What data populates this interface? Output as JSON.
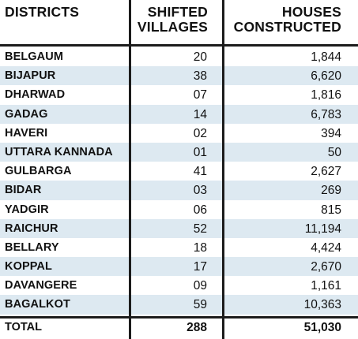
{
  "headers": {
    "districts": "DISTRICTS",
    "shifted_line1": "SHIFTED",
    "shifted_line2": "VILLAGES",
    "houses_line1": "HOUSES",
    "houses_line2": "CONSTRUCTED"
  },
  "rows": [
    {
      "district": "BELGAUM",
      "villages": "20",
      "houses": "1,844"
    },
    {
      "district": "BIJAPUR",
      "villages": "38",
      "houses": "6,620"
    },
    {
      "district": "DHARWAD",
      "villages": "07",
      "houses": "1,816"
    },
    {
      "district": "GADAG",
      "villages": "14",
      "houses": "6,783"
    },
    {
      "district": "HAVERI",
      "villages": "02",
      "houses": "394"
    },
    {
      "district": "UTTARA KANNADA",
      "villages": "01",
      "houses": "50"
    },
    {
      "district": "GULBARGA",
      "villages": "41",
      "houses": "2,627"
    },
    {
      "district": "BIDAR",
      "villages": "03",
      "houses": "269"
    },
    {
      "district": "YADGIR",
      "villages": "06",
      "houses": "815"
    },
    {
      "district": "RAICHUR",
      "villages": "52",
      "houses": "11,194"
    },
    {
      "district": "BELLARY",
      "villages": "18",
      "houses": "4,424"
    },
    {
      "district": "KOPPAL",
      "villages": "17",
      "houses": "2,670"
    },
    {
      "district": "DAVANGERE",
      "villages": "09",
      "houses": "1,161"
    },
    {
      "district": "BAGALKOT",
      "villages": "59",
      "houses": "10,363"
    }
  ],
  "total": {
    "label": "TOTAL",
    "villages": "288",
    "houses": "51,030"
  },
  "colors": {
    "stripe": "#dde9f1",
    "rule": "#1c1c1c",
    "text": "#111111"
  }
}
